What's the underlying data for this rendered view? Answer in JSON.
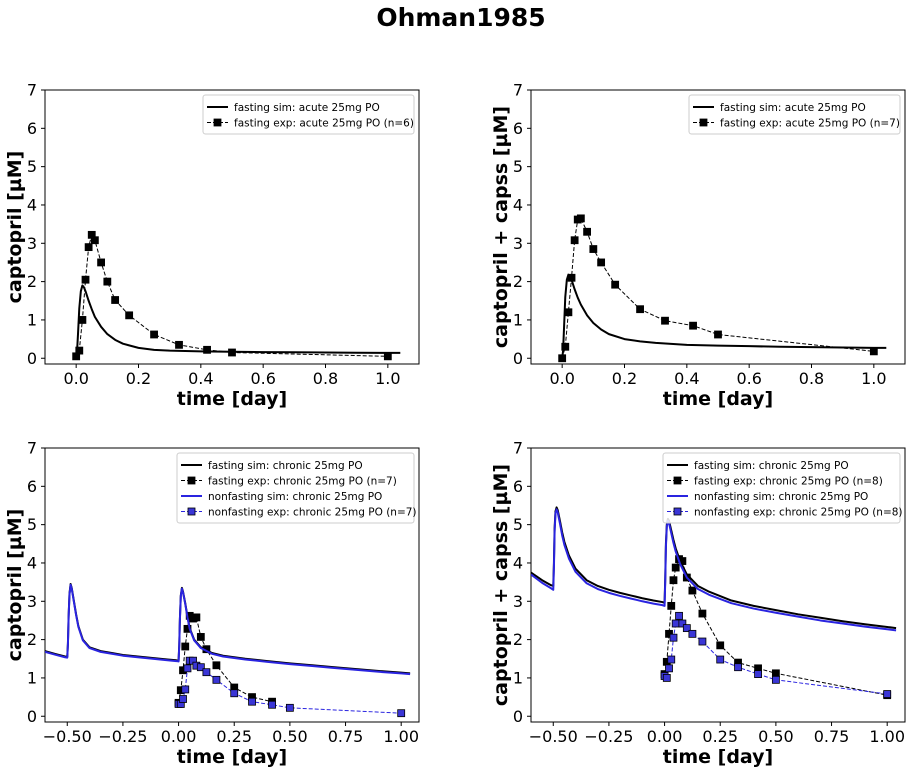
{
  "figure": {
    "title": "Ohman1985"
  },
  "colors": {
    "fasting": "#000000",
    "nonfasting": "#2a24e0",
    "marker_fasting": "#000000",
    "marker_nonfasting": "#3a35d6"
  },
  "chart_data": [
    {
      "type": "line",
      "xlabel": "time [day]",
      "ylabel": "captopril [µM]",
      "xlim": [
        -0.1,
        1.1
      ],
      "ylim": [
        -0.15,
        7
      ],
      "xticks": [
        0.0,
        0.2,
        0.4,
        0.6,
        0.8,
        1.0
      ],
      "xtick_labels": [
        "0.0",
        "0.2",
        "0.4",
        "0.6",
        "0.8",
        "1.0"
      ],
      "yticks": [
        0,
        1,
        2,
        3,
        4,
        5,
        6,
        7
      ],
      "ytick_labels": [
        "0",
        "1",
        "2",
        "3",
        "4",
        "5",
        "6",
        "7"
      ],
      "legend_position": "top-right",
      "series": [
        {
          "name": "fasting sim: acute 25mg PO",
          "kind": "sim",
          "color": "fasting",
          "x": [
            0.0,
            0.003,
            0.006,
            0.01,
            0.015,
            0.02,
            0.025,
            0.03,
            0.04,
            0.05,
            0.06,
            0.08,
            0.1,
            0.125,
            0.15,
            0.2,
            0.25,
            0.3,
            0.35,
            0.4,
            0.5,
            0.6,
            0.7,
            0.8,
            0.9,
            1.0,
            1.04
          ],
          "y": [
            0.0,
            0.2,
            0.65,
            1.3,
            1.75,
            1.9,
            1.85,
            1.75,
            1.5,
            1.28,
            1.08,
            0.82,
            0.63,
            0.48,
            0.38,
            0.27,
            0.22,
            0.2,
            0.19,
            0.18,
            0.17,
            0.16,
            0.155,
            0.15,
            0.145,
            0.14,
            0.14
          ]
        },
        {
          "name": "fasting exp: acute 25mg PO (n=6)",
          "kind": "exp",
          "color": "fasting",
          "x": [
            0.0,
            0.01,
            0.02,
            0.03,
            0.04,
            0.05,
            0.06,
            0.08,
            0.1,
            0.125,
            0.17,
            0.25,
            0.33,
            0.42,
            0.5,
            1.0
          ],
          "y": [
            0.05,
            0.2,
            1.0,
            2.05,
            2.9,
            3.22,
            3.08,
            2.5,
            2.0,
            1.52,
            1.12,
            0.62,
            0.35,
            0.22,
            0.15,
            0.05
          ]
        }
      ]
    },
    {
      "type": "line",
      "xlabel": "time [day]",
      "ylabel": "captopril + capss [µM]",
      "xlim": [
        -0.1,
        1.1
      ],
      "ylim": [
        -0.15,
        7
      ],
      "xticks": [
        0.0,
        0.2,
        0.4,
        0.6,
        0.8,
        1.0
      ],
      "xtick_labels": [
        "0.0",
        "0.2",
        "0.4",
        "0.6",
        "0.8",
        "1.0"
      ],
      "yticks": [
        0,
        1,
        2,
        3,
        4,
        5,
        6,
        7
      ],
      "ytick_labels": [
        "0",
        "1",
        "2",
        "3",
        "4",
        "5",
        "6",
        "7"
      ],
      "legend_position": "top-right",
      "series": [
        {
          "name": "fasting sim: acute 25mg PO",
          "kind": "sim",
          "color": "fasting",
          "x": [
            0.0,
            0.003,
            0.006,
            0.01,
            0.015,
            0.02,
            0.025,
            0.03,
            0.04,
            0.05,
            0.06,
            0.08,
            0.1,
            0.125,
            0.15,
            0.2,
            0.25,
            0.3,
            0.4,
            0.5,
            0.6,
            0.7,
            0.8,
            0.9,
            1.0,
            1.04
          ],
          "y": [
            0.0,
            0.2,
            0.8,
            1.6,
            2.05,
            2.18,
            2.15,
            2.05,
            1.8,
            1.58,
            1.4,
            1.12,
            0.92,
            0.75,
            0.63,
            0.5,
            0.44,
            0.4,
            0.35,
            0.33,
            0.315,
            0.3,
            0.29,
            0.28,
            0.27,
            0.27
          ]
        },
        {
          "name": "fasting exp: acute 25mg PO (n=7)",
          "kind": "exp",
          "color": "fasting",
          "x": [
            0.0,
            0.01,
            0.02,
            0.03,
            0.04,
            0.05,
            0.06,
            0.08,
            0.1,
            0.125,
            0.17,
            0.25,
            0.33,
            0.42,
            0.5,
            1.0
          ],
          "y": [
            0.0,
            0.3,
            1.2,
            2.1,
            3.08,
            3.62,
            3.65,
            3.3,
            2.85,
            2.5,
            1.92,
            1.28,
            0.98,
            0.85,
            0.62,
            0.18
          ]
        }
      ]
    },
    {
      "type": "line",
      "xlabel": "time [day]",
      "ylabel": "captopril [µM]",
      "xlim": [
        -0.6,
        1.08
      ],
      "ylim": [
        -0.15,
        7
      ],
      "xticks": [
        -0.5,
        -0.25,
        0.0,
        0.25,
        0.5,
        0.75,
        1.0
      ],
      "xtick_labels": [
        "−0.50",
        "−0.25",
        "0.00",
        "0.25",
        "0.50",
        "0.75",
        "1.00"
      ],
      "yticks": [
        0,
        1,
        2,
        3,
        4,
        5,
        6,
        7
      ],
      "ytick_labels": [
        "0",
        "1",
        "2",
        "3",
        "4",
        "5",
        "6",
        "7"
      ],
      "legend_position": "top-right",
      "series": [
        {
          "name": "fasting sim: chronic 25mg PO",
          "kind": "sim",
          "color": "fasting",
          "x": [
            -0.6,
            -0.55,
            -0.51,
            -0.5,
            -0.497,
            -0.494,
            -0.49,
            -0.485,
            -0.48,
            -0.47,
            -0.46,
            -0.45,
            -0.43,
            -0.4,
            -0.35,
            -0.3,
            -0.25,
            -0.2,
            -0.15,
            -0.1,
            -0.05,
            -0.01,
            0.0,
            0.003,
            0.006,
            0.01,
            0.015,
            0.02,
            0.03,
            0.04,
            0.05,
            0.07,
            0.1,
            0.15,
            0.2,
            0.3,
            0.4,
            0.5,
            0.6,
            0.7,
            0.8,
            0.9,
            1.0,
            1.04
          ],
          "y": [
            1.7,
            1.62,
            1.56,
            1.55,
            1.9,
            2.6,
            3.2,
            3.45,
            3.35,
            3.0,
            2.65,
            2.35,
            2.0,
            1.8,
            1.7,
            1.65,
            1.6,
            1.57,
            1.54,
            1.51,
            1.48,
            1.46,
            1.45,
            1.85,
            2.55,
            3.15,
            3.35,
            3.25,
            2.95,
            2.6,
            2.3,
            2.0,
            1.8,
            1.65,
            1.58,
            1.5,
            1.44,
            1.38,
            1.33,
            1.28,
            1.23,
            1.18,
            1.14,
            1.12
          ]
        },
        {
          "name": "fasting exp: chronic 25mg PO (n=7)",
          "kind": "exp",
          "color": "fasting",
          "x": [
            0.0,
            0.01,
            0.02,
            0.03,
            0.04,
            0.05,
            0.065,
            0.08,
            0.1,
            0.125,
            0.17,
            0.25,
            0.33,
            0.42
          ],
          "y": [
            0.35,
            0.68,
            1.2,
            1.82,
            2.28,
            2.62,
            2.55,
            2.58,
            2.07,
            1.75,
            1.33,
            0.75,
            0.5,
            0.38
          ]
        },
        {
          "name": "nonfasting sim: chronic 25mg PO",
          "kind": "sim",
          "color": "nonfasting",
          "x": [
            -0.6,
            -0.55,
            -0.51,
            -0.5,
            -0.497,
            -0.494,
            -0.49,
            -0.485,
            -0.48,
            -0.47,
            -0.46,
            -0.45,
            -0.43,
            -0.4,
            -0.35,
            -0.3,
            -0.25,
            -0.2,
            -0.15,
            -0.1,
            -0.05,
            -0.01,
            0.0,
            0.003,
            0.006,
            0.01,
            0.015,
            0.02,
            0.03,
            0.04,
            0.05,
            0.07,
            0.1,
            0.15,
            0.2,
            0.3,
            0.4,
            0.5,
            0.6,
            0.7,
            0.8,
            0.9,
            1.0,
            1.04
          ],
          "y": [
            1.68,
            1.6,
            1.54,
            1.53,
            1.88,
            2.58,
            3.18,
            3.43,
            3.33,
            2.98,
            2.63,
            2.33,
            1.98,
            1.78,
            1.68,
            1.63,
            1.58,
            1.55,
            1.52,
            1.49,
            1.46,
            1.44,
            1.43,
            1.83,
            2.53,
            3.13,
            3.33,
            3.23,
            2.93,
            2.58,
            2.28,
            1.98,
            1.78,
            1.63,
            1.56,
            1.48,
            1.42,
            1.36,
            1.31,
            1.26,
            1.21,
            1.16,
            1.12,
            1.1
          ]
        },
        {
          "name": "nonfasting exp: chronic 25mg PO (n=7)",
          "kind": "exp",
          "color": "nonfasting",
          "x": [
            0.0,
            0.01,
            0.02,
            0.03,
            0.04,
            0.05,
            0.065,
            0.08,
            0.1,
            0.125,
            0.17,
            0.25,
            0.33,
            0.42,
            0.5,
            1.0
          ],
          "y": [
            0.32,
            0.32,
            0.45,
            0.7,
            1.25,
            1.45,
            1.45,
            1.32,
            1.28,
            1.15,
            0.95,
            0.6,
            0.38,
            0.3,
            0.22,
            0.08
          ]
        }
      ]
    },
    {
      "type": "line",
      "xlabel": "time [day]",
      "ylabel": "captopril + capss [µM]",
      "xlim": [
        -0.6,
        1.08
      ],
      "ylim": [
        -0.15,
        7
      ],
      "xticks": [
        -0.5,
        -0.25,
        0.0,
        0.25,
        0.5,
        0.75,
        1.0
      ],
      "xtick_labels": [
        "−0.50",
        "−0.25",
        "0.00",
        "0.25",
        "0.50",
        "0.75",
        "1.00"
      ],
      "yticks": [
        0,
        1,
        2,
        3,
        4,
        5,
        6,
        7
      ],
      "ytick_labels": [
        "0",
        "1",
        "2",
        "3",
        "4",
        "5",
        "6",
        "7"
      ],
      "legend_position": "top-right",
      "series": [
        {
          "name": "fasting sim: chronic 25mg PO",
          "kind": "sim",
          "color": "fasting",
          "x": [
            -0.6,
            -0.55,
            -0.51,
            -0.5,
            -0.497,
            -0.494,
            -0.49,
            -0.485,
            -0.48,
            -0.47,
            -0.46,
            -0.45,
            -0.43,
            -0.4,
            -0.35,
            -0.3,
            -0.25,
            -0.2,
            -0.15,
            -0.1,
            -0.05,
            -0.01,
            0.0,
            0.003,
            0.006,
            0.01,
            0.015,
            0.02,
            0.03,
            0.04,
            0.05,
            0.07,
            0.1,
            0.15,
            0.2,
            0.3,
            0.4,
            0.5,
            0.6,
            0.7,
            0.8,
            0.9,
            1.0,
            1.04
          ],
          "y": [
            3.75,
            3.55,
            3.42,
            3.4,
            4.0,
            4.9,
            5.35,
            5.45,
            5.38,
            5.1,
            4.8,
            4.55,
            4.2,
            3.85,
            3.55,
            3.4,
            3.3,
            3.22,
            3.15,
            3.08,
            3.02,
            2.98,
            2.96,
            3.6,
            4.5,
            5.0,
            5.15,
            5.1,
            4.85,
            4.6,
            4.38,
            4.05,
            3.7,
            3.4,
            3.25,
            3.02,
            2.88,
            2.77,
            2.66,
            2.57,
            2.48,
            2.4,
            2.33,
            2.3
          ]
        },
        {
          "name": "fasting exp: chronic 25mg PO (n=8)",
          "kind": "exp",
          "color": "fasting",
          "x": [
            0.0,
            0.01,
            0.02,
            0.03,
            0.04,
            0.05,
            0.065,
            0.08,
            0.1,
            0.125,
            0.17,
            0.25,
            0.33,
            0.42,
            0.5,
            1.0
          ],
          "y": [
            1.1,
            1.42,
            2.15,
            2.88,
            3.55,
            3.88,
            4.1,
            4.05,
            3.62,
            3.28,
            2.68,
            1.85,
            1.4,
            1.25,
            1.12,
            0.55
          ]
        },
        {
          "name": "nonfasting sim: chronic 25mg PO",
          "kind": "sim",
          "color": "nonfasting",
          "x": [
            -0.6,
            -0.55,
            -0.51,
            -0.5,
            -0.497,
            -0.494,
            -0.49,
            -0.485,
            -0.48,
            -0.47,
            -0.46,
            -0.45,
            -0.43,
            -0.4,
            -0.35,
            -0.3,
            -0.25,
            -0.2,
            -0.15,
            -0.1,
            -0.05,
            -0.01,
            0.0,
            0.003,
            0.006,
            0.01,
            0.015,
            0.02,
            0.03,
            0.04,
            0.05,
            0.07,
            0.1,
            0.15,
            0.2,
            0.3,
            0.4,
            0.5,
            0.6,
            0.7,
            0.8,
            0.9,
            1.0,
            1.04
          ],
          "y": [
            3.7,
            3.48,
            3.34,
            3.3,
            3.9,
            4.82,
            5.3,
            5.4,
            5.32,
            5.03,
            4.72,
            4.47,
            4.12,
            3.77,
            3.47,
            3.32,
            3.22,
            3.14,
            3.07,
            3.0,
            2.94,
            2.9,
            2.88,
            3.52,
            4.42,
            4.95,
            5.1,
            5.04,
            4.78,
            4.52,
            4.3,
            3.97,
            3.62,
            3.32,
            3.17,
            2.95,
            2.81,
            2.7,
            2.6,
            2.5,
            2.42,
            2.34,
            2.27,
            2.24
          ]
        },
        {
          "name": "nonfasting exp: chronic 25mg PO (n=8)",
          "kind": "exp",
          "color": "nonfasting",
          "x": [
            0.0,
            0.01,
            0.02,
            0.03,
            0.04,
            0.05,
            0.065,
            0.08,
            0.1,
            0.125,
            0.17,
            0.25,
            0.33,
            0.42,
            0.5,
            1.0
          ],
          "y": [
            1.05,
            1.0,
            1.25,
            1.48,
            2.05,
            2.42,
            2.62,
            2.42,
            2.3,
            2.15,
            1.95,
            1.48,
            1.28,
            1.1,
            0.95,
            0.58
          ]
        }
      ]
    }
  ]
}
